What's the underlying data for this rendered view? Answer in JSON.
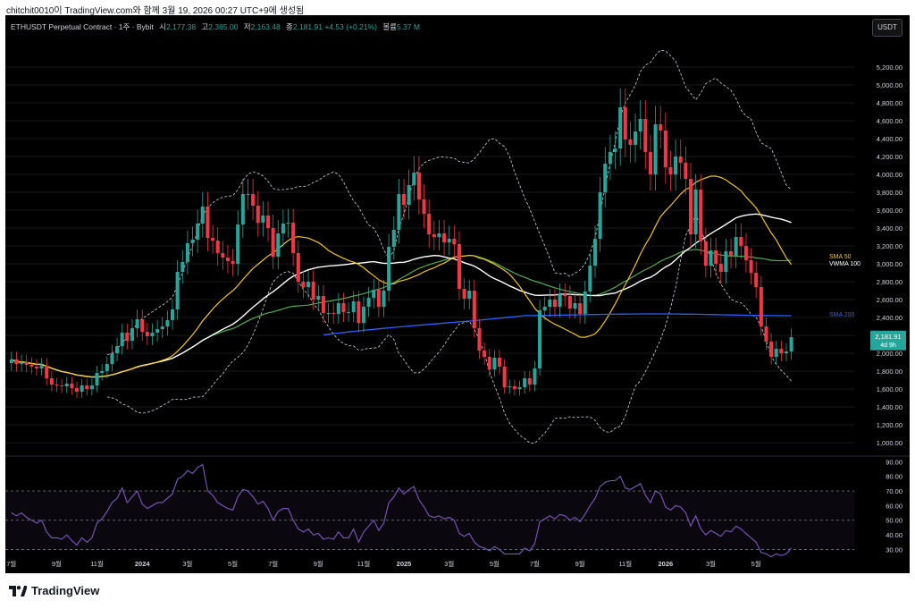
{
  "capture": {
    "text": "chitchit0010이 TradingView.com와 함께 3월 19, 2026 00:27 UTC+9에 생성됨"
  },
  "header": {
    "symbol": "ETHUSDT Perpetual Contract · 1주 · Bybit",
    "open_label": "시",
    "open": "2,177.38",
    "high_label": "고",
    "high": "2,385.00",
    "low_label": "저",
    "low": "2,163.48",
    "close_label": "종",
    "close": "2,181.91",
    "change": "+4.53 (+0.21%)",
    "volume_label": "볼륨",
    "volume": "5.37 M",
    "currency_button": "USDT"
  },
  "branding": {
    "text": "TradingView"
  },
  "price_tag": {
    "value": "2,181.91",
    "countdown": "4d 9h"
  },
  "colors": {
    "up": "#26a69a",
    "down": "#f23645",
    "sma50": "#f5c518",
    "sma100": "#ffffff",
    "sma200": "#2962ff",
    "vwma": "#4caf50",
    "bands": "#d1d4dc",
    "rsi": "#7e57c2"
  },
  "chart_data": [
    {
      "type": "candlestick",
      "title": "ETHUSDT Perpetual Contract · 1주 · Bybit",
      "y_ticks": [
        1000,
        1200,
        1400,
        1600,
        1800,
        2000,
        2200,
        2400,
        2600,
        2800,
        3000,
        3200,
        3400,
        3600,
        3800,
        4000,
        4200,
        4400,
        4600,
        4800,
        5000,
        5200
      ],
      "y_tick_labels": [
        "1,000.00",
        "1,200.00",
        "1,400.00",
        "1,600.00",
        "1,800.00",
        "2,000.00",
        "2,200.00",
        "2,400.00",
        "2,600.00",
        "2,800.00",
        "3,000.00",
        "3,200.00",
        "3,400.00",
        "3,600.00",
        "3,800.00",
        "4,000.00",
        "4,200.00",
        "4,400.00",
        "4,600.00",
        "4,800.00",
        "5,000.00",
        "5,200.00"
      ],
      "ylim": [
        880,
        5400
      ],
      "x_ticks": [
        {
          "week": 0,
          "label": "7월"
        },
        {
          "week": 9,
          "label": "9월"
        },
        {
          "week": 17,
          "label": "11월"
        },
        {
          "week": 26,
          "label": "2024"
        },
        {
          "week": 35,
          "label": "3월"
        },
        {
          "week": 44,
          "label": "5월"
        },
        {
          "week": 52,
          "label": "7월"
        },
        {
          "week": 61,
          "label": "9월"
        },
        {
          "week": 70,
          "label": "11월"
        },
        {
          "week": 78,
          "label": "2025"
        },
        {
          "week": 87,
          "label": "3월"
        },
        {
          "week": 96,
          "label": "5월"
        },
        {
          "week": 104,
          "label": "7월"
        },
        {
          "week": 113,
          "label": "9월"
        },
        {
          "week": 122,
          "label": "11월"
        },
        {
          "week": 130,
          "label": "2026"
        },
        {
          "week": 139,
          "label": "3월"
        },
        {
          "week": 148,
          "label": "5월"
        }
      ],
      "close": [
        1930,
        1880,
        1900,
        1870,
        1850,
        1830,
        1860,
        1720,
        1650,
        1640,
        1630,
        1660,
        1610,
        1570,
        1640,
        1600,
        1640,
        1780,
        1800,
        1880,
        2000,
        2080,
        2230,
        2140,
        2280,
        2380,
        2240,
        2190,
        2230,
        2270,
        2300,
        2370,
        2490,
        2910,
        3020,
        3230,
        3270,
        3450,
        3640,
        3290,
        3260,
        3120,
        3070,
        3030,
        3000,
        3440,
        3780,
        3780,
        3650,
        3460,
        3540,
        3400,
        3080,
        3340,
        3450,
        3460,
        3120,
        2800,
        2740,
        2800,
        2600,
        2640,
        2450,
        2450,
        2440,
        2560,
        2460,
        2460,
        2580,
        2340,
        2520,
        2620,
        2710,
        2520,
        2700,
        3190,
        3380,
        3780,
        3660,
        3880,
        4020,
        3720,
        3560,
        3330,
        3300,
        3340,
        3240,
        3280,
        3220,
        2720,
        2610,
        2700,
        2280,
        2030,
        1960,
        1820,
        1950,
        1850,
        1620,
        1630,
        1600,
        1620,
        1720,
        1650,
        1830,
        2480,
        2520,
        2600,
        2520,
        2660,
        2640,
        2500,
        2560,
        2440,
        2690,
        2980,
        3280,
        3800,
        4120,
        4250,
        4290,
        4750,
        4390,
        4330,
        4480,
        4620,
        4250,
        4000,
        4560,
        4490,
        4080,
        4000,
        4200,
        4130,
        3950,
        3330,
        3830,
        3250,
        2980,
        3150,
        3000,
        2910,
        3140,
        3090,
        3300,
        3200,
        3040,
        2900,
        2740,
        2300,
        2130,
        1960,
        2050,
        2000,
        2020,
        2180
      ],
      "sma50": [
        null,
        null,
        null,
        null,
        null,
        null,
        null,
        null,
        null,
        null,
        null,
        null,
        null,
        null,
        null,
        null,
        null,
        null,
        null,
        null,
        null,
        null,
        null,
        null,
        null,
        null,
        null,
        null,
        null,
        null,
        null,
        null,
        null,
        null,
        null,
        null,
        null,
        null,
        null,
        null,
        null,
        null,
        null,
        null,
        null,
        null,
        null,
        null,
        null,
        null,
        2380,
        2424,
        2462,
        2503,
        2553,
        2610,
        2658,
        2696,
        2734,
        2767,
        2787,
        2808,
        2825,
        2840,
        2856,
        2875,
        2888,
        2896,
        2908,
        2914,
        2922,
        2933,
        2943,
        2946,
        2945,
        2957,
        2973,
        3000,
        3022,
        3046,
        3068,
        3077,
        3085,
        3082,
        3079,
        3073,
        3063,
        3061,
        3051,
        3036,
        3008,
        2992,
        2949,
        2895,
        2845,
        2800,
        2749,
        2685,
        2608,
        2541,
        2466,
        2390,
        2345,
        2284,
        2227,
        2209,
        2190,
        2164,
        2141,
        2125,
        2112,
        2103,
        2112,
        2119,
        2144,
        2174,
        2210,
        2272,
        2337,
        2400,
        2466,
        2536,
        2595,
        2654,
        2715,
        2779,
        2828,
        2875,
        2942,
        3010,
        3061,
        3108,
        3150,
        3180,
        3203,
        3202,
        3209,
        3203,
        3198,
        3205,
        3208,
        3210,
        3215,
        3216,
        3208,
        3195,
        3174,
        3136,
        3090,
        3025,
        2972,
        2912,
        2865,
        2813,
        2776,
        2732
      ],
      "sma100": [
        null,
        null,
        null,
        null,
        null,
        null,
        null,
        null,
        null,
        null,
        null,
        null,
        null,
        null,
        null,
        null,
        null,
        null,
        null,
        null,
        null,
        null,
        null,
        null,
        null,
        null,
        null,
        null,
        null,
        null,
        null,
        null,
        null,
        null,
        null,
        null,
        null,
        null,
        null,
        null,
        null,
        null,
        null,
        null,
        null,
        null,
        null,
        null,
        null,
        null,
        null,
        null,
        null,
        null,
        null,
        null,
        null,
        null,
        null,
        null,
        null,
        null,
        null,
        null,
        null,
        null,
        null,
        null,
        null,
        null,
        null,
        null,
        null,
        null,
        null,
        null,
        null,
        null,
        null,
        null,
        null,
        null,
        null,
        null,
        null,
        null,
        null,
        null,
        null,
        null,
        null,
        null,
        null,
        null,
        null,
        null,
        null,
        null,
        null,
        2604,
        2593,
        2590,
        2591,
        2590,
        2593,
        2602,
        2609,
        2618,
        2625,
        2636,
        2648,
        2656,
        2666,
        2675,
        2683,
        2686,
        2686,
        2695,
        2709,
        2733,
        2755,
        2783,
        2799,
        2813,
        2831,
        2849,
        2861,
        2870,
        2891,
        2910,
        2921,
        2932,
        2945,
        2958,
        2970,
        2966,
        2966,
        2958,
        2946,
        2941,
        2936,
        2927,
        2924,
        2920,
        2918,
        2912,
        2899,
        2889,
        2890,
        2877,
        2858,
        2840,
        2832,
        2823,
        2810,
        2794
      ],
      "sma200": [
        null,
        null,
        null,
        null,
        null,
        null,
        null,
        null,
        null,
        null,
        null,
        null,
        null,
        null,
        null,
        null,
        null,
        null,
        null,
        null,
        null,
        null,
        null,
        null,
        null,
        null,
        null,
        null,
        null,
        null,
        null,
        null,
        null,
        null,
        null,
        null,
        null,
        null,
        null,
        null,
        null,
        null,
        null,
        null,
        null,
        null,
        null,
        null,
        null,
        null,
        null,
        null,
        null,
        null,
        null,
        null,
        null,
        null,
        null,
        null,
        null,
        null,
        null,
        null,
        null,
        null,
        null,
        null,
        null,
        null,
        null,
        null,
        null,
        null,
        null,
        null,
        null,
        null,
        null,
        null,
        null,
        null,
        null,
        null,
        null,
        null,
        null,
        null,
        null,
        null,
        null,
        null,
        null,
        null,
        null,
        null,
        null,
        null,
        null,
        null,
        null,
        null,
        null,
        null,
        null,
        null,
        null,
        null,
        null,
        null,
        null,
        null,
        null,
        null,
        null,
        null,
        null,
        null,
        null,
        null,
        null,
        null,
        null,
        null,
        null,
        null,
        null,
        null,
        null,
        null,
        null,
        null,
        null,
        null,
        null,
        null,
        null,
        null,
        null,
        null,
        null,
        null,
        null,
        null,
        null,
        null,
        null,
        null,
        null,
        null,
        null,
        null,
        null,
        null,
        null,
        null,
        null
      ]
    },
    {
      "type": "line",
      "title": "RSI",
      "y_ticks": [
        30,
        40,
        50,
        60,
        70,
        80,
        90
      ],
      "y_tick_labels": [
        "30.00",
        "40.00",
        "50.00",
        "60.00",
        "70.00",
        "80.00",
        "90.00"
      ],
      "ylim": [
        26,
        92
      ],
      "bands": [
        30,
        50,
        70
      ],
      "values": [
        55,
        53,
        55,
        52,
        50,
        48,
        50,
        42,
        38,
        38,
        37,
        40,
        36,
        33,
        38,
        35,
        38,
        48,
        51,
        56,
        62,
        65,
        72,
        62,
        66,
        70,
        61,
        58,
        60,
        62,
        62,
        65,
        68,
        78,
        80,
        84,
        82,
        86,
        88,
        70,
        67,
        62,
        60,
        58,
        57,
        66,
        71,
        70,
        66,
        61,
        63,
        58,
        50,
        56,
        58,
        58,
        50,
        44,
        42,
        44,
        40,
        41,
        37,
        38,
        37,
        42,
        38,
        38,
        44,
        35,
        42,
        46,
        50,
        43,
        48,
        62,
        66,
        72,
        68,
        71,
        73,
        64,
        59,
        53,
        52,
        53,
        51,
        52,
        50,
        41,
        39,
        41,
        35,
        32,
        31,
        29,
        32,
        30,
        27,
        27,
        27,
        27,
        31,
        29,
        34,
        49,
        51,
        53,
        51,
        54,
        53,
        50,
        52,
        49,
        54,
        60,
        65,
        73,
        76,
        77,
        77,
        80,
        72,
        71,
        73,
        75,
        67,
        62,
        70,
        68,
        59,
        57,
        60,
        59,
        55,
        46,
        53,
        44,
        40,
        43,
        41,
        39,
        43,
        42,
        46,
        44,
        41,
        38,
        35,
        28,
        27,
        25,
        27,
        26,
        27,
        31
      ],
      "line_color": "#7e57c2"
    }
  ],
  "axis_labels": {
    "sma50": "SMA 50",
    "vwma100": "VWMA 100",
    "sma200": "SMA 200"
  }
}
